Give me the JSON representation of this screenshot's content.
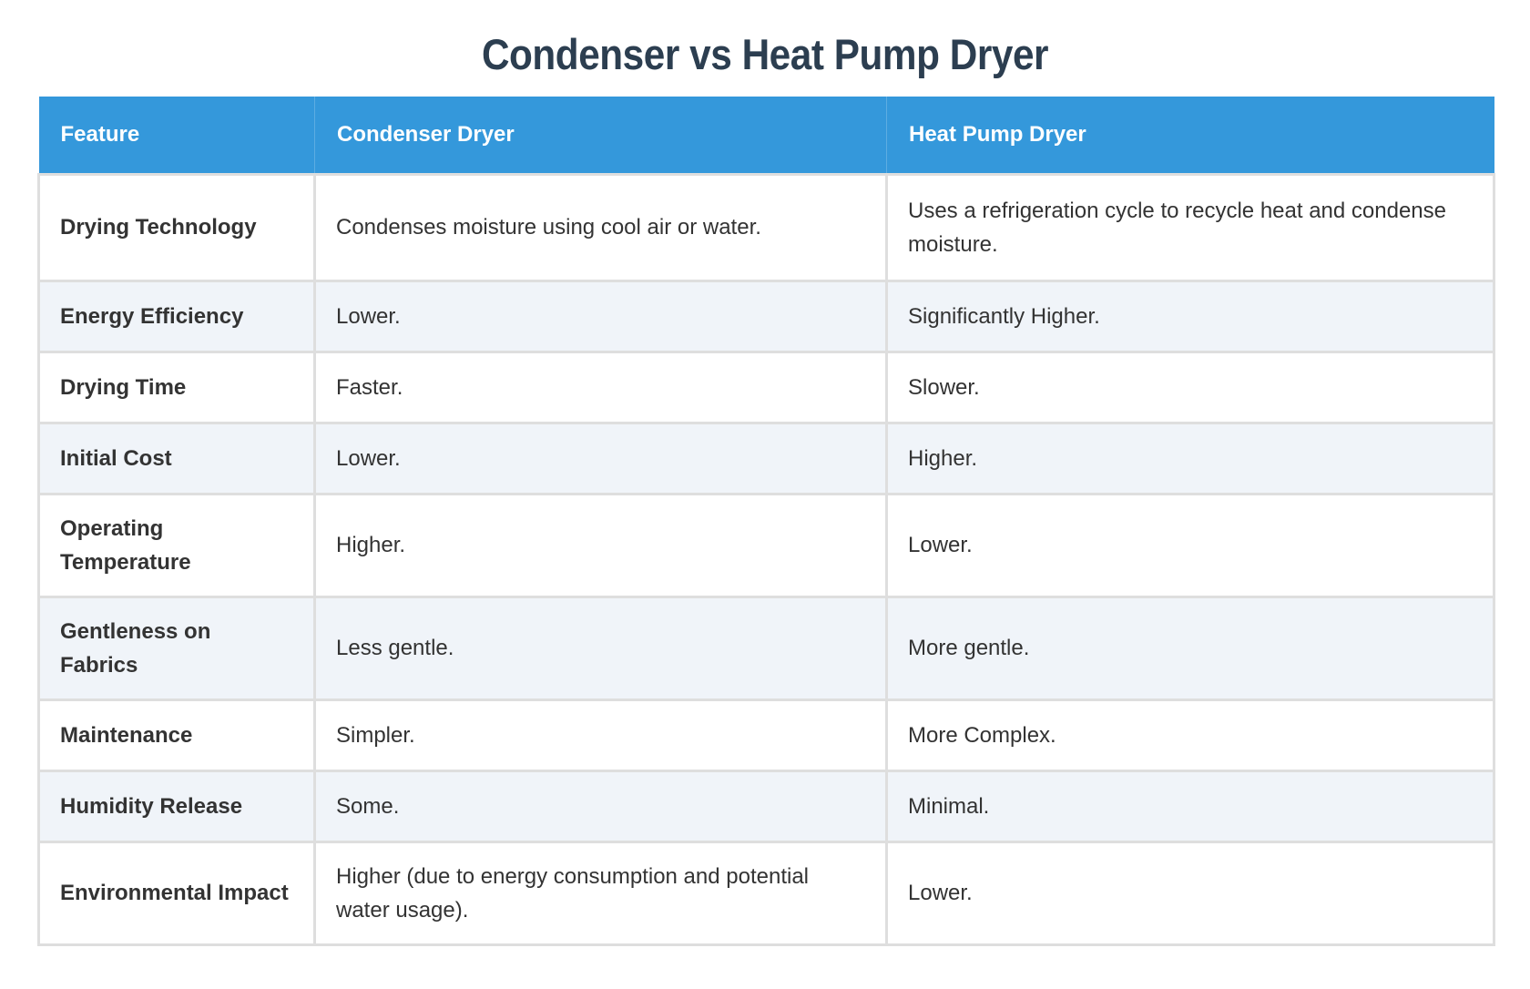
{
  "title": "Condenser vs Heat Pump Dryer",
  "colors": {
    "header_bg": "#3498db",
    "title": "#2c3e50",
    "text": "#333333",
    "row_alt_bg": "#f0f4f9",
    "border": "#dedede"
  },
  "table": {
    "headers": [
      "Feature",
      "Condenser Dryer",
      "Heat Pump Dryer"
    ],
    "rows": [
      {
        "feature": "Drying Technology",
        "condenser": "Condenses moisture using cool air or water.",
        "heat_pump": "Uses a refrigeration cycle to recycle heat and condense moisture."
      },
      {
        "feature": "Energy Efficiency",
        "condenser": "Lower.",
        "heat_pump": "Significantly Higher."
      },
      {
        "feature": "Drying Time",
        "condenser": "Faster.",
        "heat_pump": "Slower."
      },
      {
        "feature": "Initial Cost",
        "condenser": "Lower.",
        "heat_pump": "Higher."
      },
      {
        "feature": "Operating Temperature",
        "condenser": "Higher.",
        "heat_pump": "Lower."
      },
      {
        "feature": "Gentleness on Fabrics",
        "condenser": "Less gentle.",
        "heat_pump": "More gentle."
      },
      {
        "feature": "Maintenance",
        "condenser": "Simpler.",
        "heat_pump": "More Complex."
      },
      {
        "feature": "Humidity Release",
        "condenser": "Some.",
        "heat_pump": "Minimal."
      },
      {
        "feature": "Environmental Impact",
        "condenser": "Higher (due to energy consumption and potential water usage).",
        "heat_pump": "Lower."
      }
    ]
  }
}
